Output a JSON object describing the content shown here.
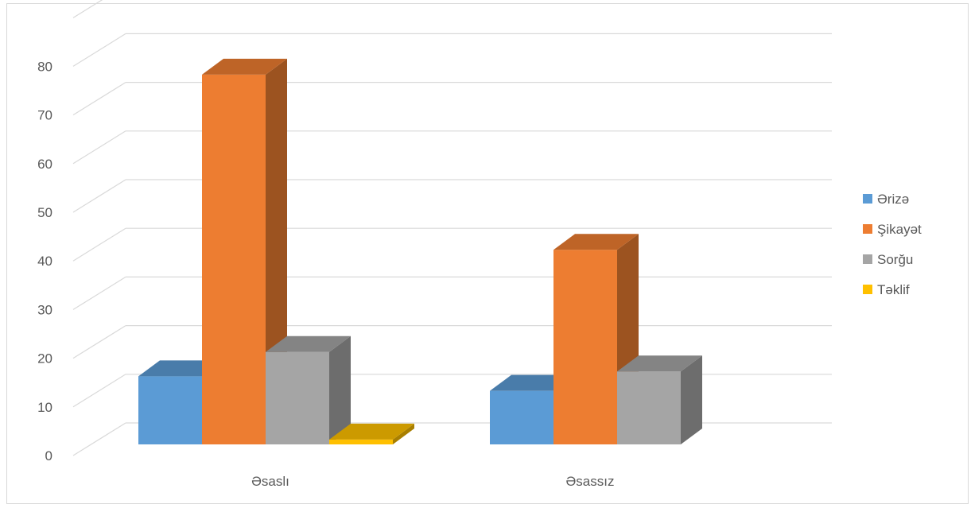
{
  "chart_data": {
    "type": "bar",
    "three_d": true,
    "categories": [
      "Əsaslı",
      "Əsassız"
    ],
    "series": [
      {
        "name": "Ərizə",
        "values": [
          14,
          11
        ],
        "color": "#5b9bd5"
      },
      {
        "name": "Şikayət",
        "values": [
          76,
          40
        ],
        "color": "#ed7d31"
      },
      {
        "name": "Sorğu",
        "values": [
          19,
          15
        ],
        "color": "#a5a5a5"
      },
      {
        "name": "Təklif",
        "values": [
          1,
          0
        ],
        "color": "#ffc000"
      }
    ],
    "y_ticks": [
      "0",
      "10",
      "20",
      "30",
      "40",
      "50",
      "60",
      "70",
      "80"
    ],
    "ylim": [
      0,
      80
    ],
    "title": "",
    "xlabel": "",
    "ylabel": "",
    "grid": true,
    "legend_position": "right"
  }
}
